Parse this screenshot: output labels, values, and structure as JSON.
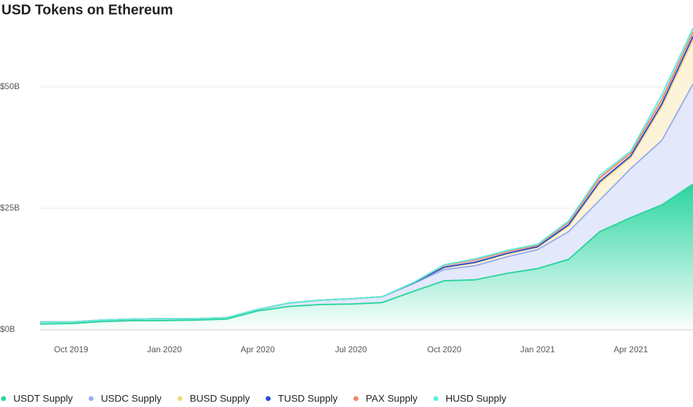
{
  "chart_data": {
    "type": "stacked_area",
    "title": "USD Tokens on Ethereum",
    "x": [
      "2019-09",
      "2019-10",
      "2019-11",
      "2019-12",
      "2020-01",
      "2020-02",
      "2020-03",
      "2020-04",
      "2020-05",
      "2020-06",
      "2020-07",
      "2020-08",
      "2020-09",
      "2020-10",
      "2020-11",
      "2020-12",
      "2021-01",
      "2021-02",
      "2021-03",
      "2021-04",
      "2021-05",
      "2021-06"
    ],
    "xlim": [
      "2019-09",
      "2021-06"
    ],
    "xticks": [
      {
        "value": "2019-10",
        "label": "Oct 2019"
      },
      {
        "value": "2020-01",
        "label": "Jan 2020"
      },
      {
        "value": "2020-04",
        "label": "Apr 2020"
      },
      {
        "value": "2020-07",
        "label": "Jul 2020"
      },
      {
        "value": "2020-10",
        "label": "Oct 2020"
      },
      {
        "value": "2021-01",
        "label": "Jan 2021"
      },
      {
        "value": "2021-04",
        "label": "Apr 2021"
      }
    ],
    "ylim": [
      0,
      65
    ],
    "yticks": [
      {
        "value": 0,
        "label": "$0B"
      },
      {
        "value": 25,
        "label": "$25B"
      },
      {
        "value": 50,
        "label": "$50B"
      }
    ],
    "grid": true,
    "series": [
      {
        "name": "USDT Supply",
        "color": "#2bd5a0",
        "values": [
          1.2,
          1.3,
          1.7,
          1.9,
          1.9,
          2.0,
          2.2,
          3.9,
          4.8,
          5.2,
          5.3,
          5.6,
          7.9,
          10.1,
          10.3,
          11.6,
          12.6,
          14.5,
          20.2,
          23.1,
          25.7,
          30.0
        ]
      },
      {
        "name": "USDC Supply",
        "color": "#9aaef0",
        "values": [
          0.4,
          0.3,
          0.3,
          0.3,
          0.4,
          0.3,
          0.3,
          0.3,
          0.7,
          0.9,
          1.1,
          1.2,
          1.6,
          2.3,
          2.9,
          3.4,
          3.9,
          5.7,
          6.5,
          10.1,
          13.3,
          20.6
        ]
      },
      {
        "name": "BUSD Supply",
        "color": "#f7d77a",
        "values": [
          0,
          0,
          0,
          0,
          0,
          0,
          0,
          0,
          0,
          0,
          0,
          0,
          0.1,
          0.4,
          0.6,
          0.6,
          0.5,
          1.2,
          3.5,
          2.3,
          7.0,
          9.0
        ]
      },
      {
        "name": "TUSD Supply",
        "color": "#2a4fd0",
        "values": [
          0,
          0,
          0,
          0,
          0,
          0,
          0,
          0,
          0,
          0,
          0,
          0,
          0,
          0.1,
          0.1,
          0.1,
          0.1,
          0.2,
          0.3,
          0.3,
          0.5,
          0.8
        ]
      },
      {
        "name": "PAX Supply",
        "color": "#f5866a",
        "values": [
          0,
          0,
          0,
          0,
          0,
          0,
          0,
          0,
          0,
          0,
          0,
          0,
          0.1,
          0.4,
          0.5,
          0.4,
          0.3,
          0.5,
          0.8,
          0.6,
          0.9,
          0.9
        ]
      },
      {
        "name": "HUSD Supply",
        "color": "#5ef0dc",
        "values": [
          0,
          0,
          0,
          0,
          0,
          0,
          0,
          0,
          0,
          0,
          0,
          0,
          0,
          0.1,
          0.2,
          0.2,
          0.2,
          0.3,
          0.5,
          0.4,
          1.0,
          0.8
        ]
      }
    ]
  }
}
